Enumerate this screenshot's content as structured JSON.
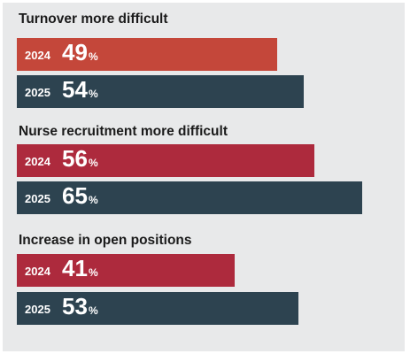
{
  "chart_data": {
    "type": "bar",
    "orientation": "horizontal",
    "unit": "%",
    "xlim": [
      0,
      75
    ],
    "colors": {
      "turnover_2024": "#c4473a",
      "recruitment_2024": "#ad2a3d",
      "positions_2024": "#ad2a3d",
      "year_2025": "#2d4350",
      "background": "#e8e9ea"
    },
    "groups": [
      {
        "title": "Turnover more difficult",
        "bars": [
          {
            "year": "2024",
            "value": 49,
            "color_key": "turnover_2024"
          },
          {
            "year": "2025",
            "value": 54,
            "color_key": "year_2025"
          }
        ]
      },
      {
        "title": "Nurse recruitment more difficult",
        "bars": [
          {
            "year": "2024",
            "value": 56,
            "color_key": "recruitment_2024"
          },
          {
            "year": "2025",
            "value": 65,
            "color_key": "year_2025"
          }
        ]
      },
      {
        "title": "Increase in open positions",
        "bars": [
          {
            "year": "2024",
            "value": 41,
            "color_key": "positions_2024"
          },
          {
            "year": "2025",
            "value": 53,
            "color_key": "year_2025"
          }
        ]
      }
    ]
  }
}
